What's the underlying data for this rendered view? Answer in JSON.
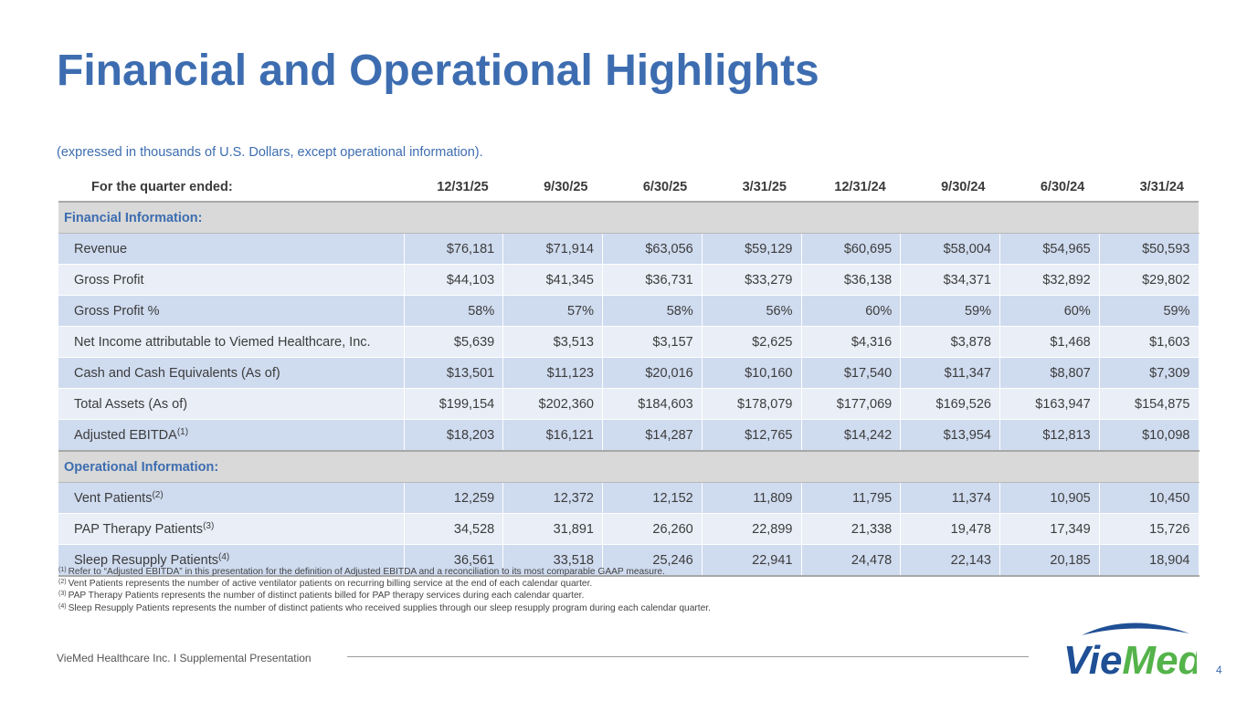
{
  "title": "Financial and Operational Highlights",
  "subtitle": "(expressed in thousands of U.S. Dollars, except operational information).",
  "table": {
    "header_label": "For the quarter ended:",
    "periods": [
      "12/31/25",
      "9/30/25",
      "6/30/25",
      "3/31/25",
      "12/31/24",
      "9/30/24",
      "6/30/24",
      "3/31/24"
    ],
    "financial_section": "Financial Information:",
    "operational_section": "Operational Information:",
    "financial_rows": [
      {
        "label": "Revenue",
        "note": "",
        "values": [
          "$76,181",
          "$71,914",
          "$63,056",
          "$59,129",
          "$60,695",
          "$58,004",
          "$54,965",
          "$50,593"
        ]
      },
      {
        "label": "Gross Profit",
        "note": "",
        "values": [
          "$44,103",
          "$41,345",
          "$36,731",
          "$33,279",
          "$36,138",
          "$34,371",
          "$32,892",
          "$29,802"
        ]
      },
      {
        "label": "Gross Profit %",
        "note": "",
        "values": [
          "58%",
          "57%",
          "58%",
          "56%",
          "60%",
          "59%",
          "60%",
          "59%"
        ]
      },
      {
        "label": "Net Income attributable to Viemed Healthcare, Inc.",
        "note": "",
        "values": [
          "$5,639",
          "$3,513",
          "$3,157",
          "$2,625",
          "$4,316",
          "$3,878",
          "$1,468",
          "$1,603"
        ]
      },
      {
        "label": "Cash and Cash Equivalents (As of)",
        "note": "",
        "values": [
          "$13,501",
          "$11,123",
          "$20,016",
          "$10,160",
          "$17,540",
          "$11,347",
          "$8,807",
          "$7,309"
        ]
      },
      {
        "label": "Total Assets (As of)",
        "note": "",
        "values": [
          "$199,154",
          "$202,360",
          "$184,603",
          "$178,079",
          "$177,069",
          "$169,526",
          "$163,947",
          "$154,875"
        ]
      },
      {
        "label": "Adjusted EBITDA",
        "note": "(1)",
        "values": [
          "$18,203",
          "$16,121",
          "$14,287",
          "$12,765",
          "$14,242",
          "$13,954",
          "$12,813",
          "$10,098"
        ]
      }
    ],
    "operational_rows": [
      {
        "label": "Vent Patients",
        "note": "(2)",
        "values": [
          "12,259",
          "12,372",
          "12,152",
          "11,809",
          "11,795",
          "11,374",
          "10,905",
          "10,450"
        ]
      },
      {
        "label": "PAP Therapy Patients",
        "note": "(3)",
        "values": [
          "34,528",
          "31,891",
          "26,260",
          "22,899",
          "21,338",
          "19,478",
          "17,349",
          "15,726"
        ]
      },
      {
        "label": "Sleep Resupply Patients",
        "note": "(4)",
        "values": [
          "36,561",
          "33,518",
          "25,246",
          "22,941",
          "24,478",
          "22,143",
          "20,185",
          "18,904"
        ]
      }
    ]
  },
  "footnotes": [
    {
      "mark": "(1)",
      "text": "Refer to “Adjusted EBITDA” in this presentation for the definition of Adjusted EBITDA and a reconciliation to its most comparable GAAP measure."
    },
    {
      "mark": "(2)",
      "text": "Vent Patients represents the number of active ventilator patients on recurring billing service at the end of each calendar quarter."
    },
    {
      "mark": "(3)",
      "text": "PAP Therapy Patients represents the number of distinct patients billed for PAP therapy services during each calendar quarter."
    },
    {
      "mark": "(4)",
      "text": "Sleep Resupply Patients represents the number of distinct patients who received supplies through our sleep resupply program during each calendar quarter."
    }
  ],
  "footer": "VieMed Healthcare Inc.  I  Supplemental Presentation",
  "logo_text": "VieMed",
  "page_number": "4",
  "colors": {
    "brand_blue": "#3d6db0",
    "logo_navy": "#1f4f95",
    "logo_green": "#54b34a",
    "row_dark": "#cfdbef",
    "row_light": "#e9eef7",
    "section_bg": "#d9d9d9"
  }
}
